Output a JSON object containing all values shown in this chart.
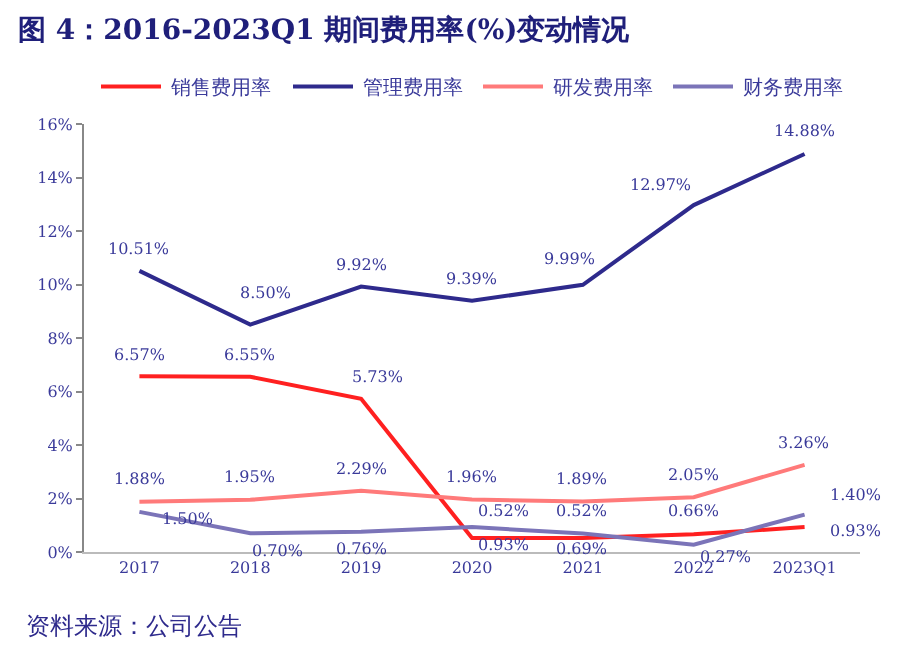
{
  "chart_data": {
    "type": "line",
    "title": "图 4：2016-2023Q1 期间费用率(%)变动情况",
    "categories": [
      "2017",
      "2018",
      "2019",
      "2020",
      "2021",
      "2022",
      "2023Q1"
    ],
    "series": [
      {
        "name": "销售费用率",
        "color": "#ff2020",
        "values": [
          6.57,
          6.55,
          5.73,
          0.52,
          0.52,
          0.66,
          0.93
        ],
        "value_labels": [
          "6.57%",
          "6.55%",
          "5.73%",
          "0.52%",
          "0.52%",
          "0.66%",
          "0.93%"
        ]
      },
      {
        "name": "管理费用率",
        "color": "#2e2a8c",
        "values": [
          10.51,
          8.5,
          9.92,
          9.39,
          9.99,
          12.97,
          14.88
        ],
        "value_labels": [
          "10.51%",
          "8.50%",
          "9.92%",
          "9.39%",
          "9.99%",
          "12.97%",
          "14.88%"
        ]
      },
      {
        "name": "研发费用率",
        "color": "#ff7a7a",
        "values": [
          1.88,
          1.95,
          2.29,
          1.96,
          1.89,
          2.05,
          3.26
        ],
        "value_labels": [
          "1.88%",
          "1.95%",
          "2.29%",
          "1.96%",
          "1.89%",
          "2.05%",
          "3.26%"
        ]
      },
      {
        "name": "财务费用率",
        "color": "#7b74b8",
        "values": [
          1.5,
          0.7,
          0.76,
          0.93,
          0.69,
          0.27,
          1.4
        ],
        "value_labels": [
          "1.50%",
          "0.70%",
          "0.76%",
          "0.93%",
          "0.69%",
          "0.27%",
          "1.40%"
        ]
      }
    ],
    "ylim": [
      0,
      16
    ],
    "yticks": [
      {
        "value": 0,
        "label": "0%"
      },
      {
        "value": 2,
        "label": "2%"
      },
      {
        "value": 4,
        "label": "4%"
      },
      {
        "value": 6,
        "label": "6%"
      },
      {
        "value": 8,
        "label": "8%"
      },
      {
        "value": 10,
        "label": "10%"
      },
      {
        "value": 12,
        "label": "12%"
      },
      {
        "value": 14,
        "label": "14%"
      },
      {
        "value": 16,
        "label": "16%"
      }
    ],
    "legend": "top",
    "marker": "none",
    "line_style": "solid",
    "annotations": [
      "资料来源：公司公告"
    ]
  }
}
